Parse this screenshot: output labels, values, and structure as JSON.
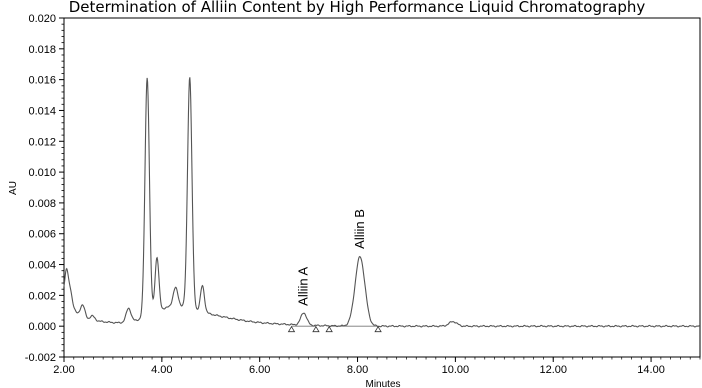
{
  "chart_data": {
    "type": "line",
    "title": "Determination of Alliin Content by High Performance Liquid Chromatography",
    "xlabel": "Minutes",
    "ylabel": "AU",
    "xlim": [
      2.0,
      15.0
    ],
    "ylim": [
      -0.002,
      0.02
    ],
    "x_ticks": [
      2.0,
      4.0,
      6.0,
      8.0,
      10.0,
      12.0,
      14.0
    ],
    "x_tick_labels": [
      "2.00",
      "4.00",
      "6.00",
      "8.00",
      "10.00",
      "12.00",
      "14.00"
    ],
    "y_ticks": [
      -0.002,
      0.0,
      0.002,
      0.004,
      0.006,
      0.008,
      0.01,
      0.012,
      0.014,
      0.016,
      0.018,
      0.02
    ],
    "y_tick_labels": [
      "-0.002",
      "0.000",
      "0.002",
      "0.004",
      "0.006",
      "0.008",
      "0.010",
      "0.012",
      "0.014",
      "0.016",
      "0.018",
      "0.020"
    ],
    "grid": false,
    "line_color": "#555555",
    "baseline_level": 0.0,
    "peaks": [
      {
        "rt": 2.05,
        "height": 0.0014,
        "width": 0.03
      },
      {
        "rt": 2.12,
        "height": 0.0008,
        "width": 0.04
      },
      {
        "rt": 2.38,
        "height": 0.0009,
        "width": 0.05
      },
      {
        "rt": 2.58,
        "height": 0.0003,
        "width": 0.05
      },
      {
        "rt": 3.32,
        "height": 0.0009,
        "width": 0.05
      },
      {
        "rt": 3.7,
        "height": 0.0155,
        "width": 0.045
      },
      {
        "rt": 3.9,
        "height": 0.0035,
        "width": 0.04
      },
      {
        "rt": 4.28,
        "height": 0.0012,
        "width": 0.05
      },
      {
        "rt": 4.57,
        "height": 0.015,
        "width": 0.045
      },
      {
        "rt": 4.83,
        "height": 0.0017,
        "width": 0.04
      },
      {
        "rt": 6.9,
        "height": 0.0008,
        "width": 0.06
      },
      {
        "rt": 8.05,
        "height": 0.0045,
        "width": 0.1
      },
      {
        "rt": 9.95,
        "height": 0.0003,
        "width": 0.08
      }
    ],
    "background_components": [
      {
        "center": 2.0,
        "height": 0.0019,
        "width": 0.15
      },
      {
        "center": 2.3,
        "height": 0.0004,
        "width": 0.6
      },
      {
        "center": 4.2,
        "height": 0.0011,
        "width": 0.45
      },
      {
        "center": 5.0,
        "height": 0.0004,
        "width": 0.5
      },
      {
        "center": 5.6,
        "height": 0.0002,
        "width": 0.9
      }
    ],
    "annotations": [
      {
        "text": "Alliin A",
        "x": 6.9,
        "y": 0.0008
      },
      {
        "text": "Alliin B",
        "x": 8.05,
        "y": 0.0045
      }
    ],
    "integration_marks": [
      {
        "x": 6.65,
        "y": 0.0
      },
      {
        "x": 7.15,
        "y": 0.0
      },
      {
        "x": 7.42,
        "y": 0.0
      },
      {
        "x": 8.42,
        "y": 0.0
      }
    ],
    "integration_baselines": [
      {
        "x1": 6.65,
        "x2": 7.15,
        "y": 0.0
      },
      {
        "x1": 7.42,
        "x2": 8.42,
        "y": 0.0
      }
    ]
  }
}
